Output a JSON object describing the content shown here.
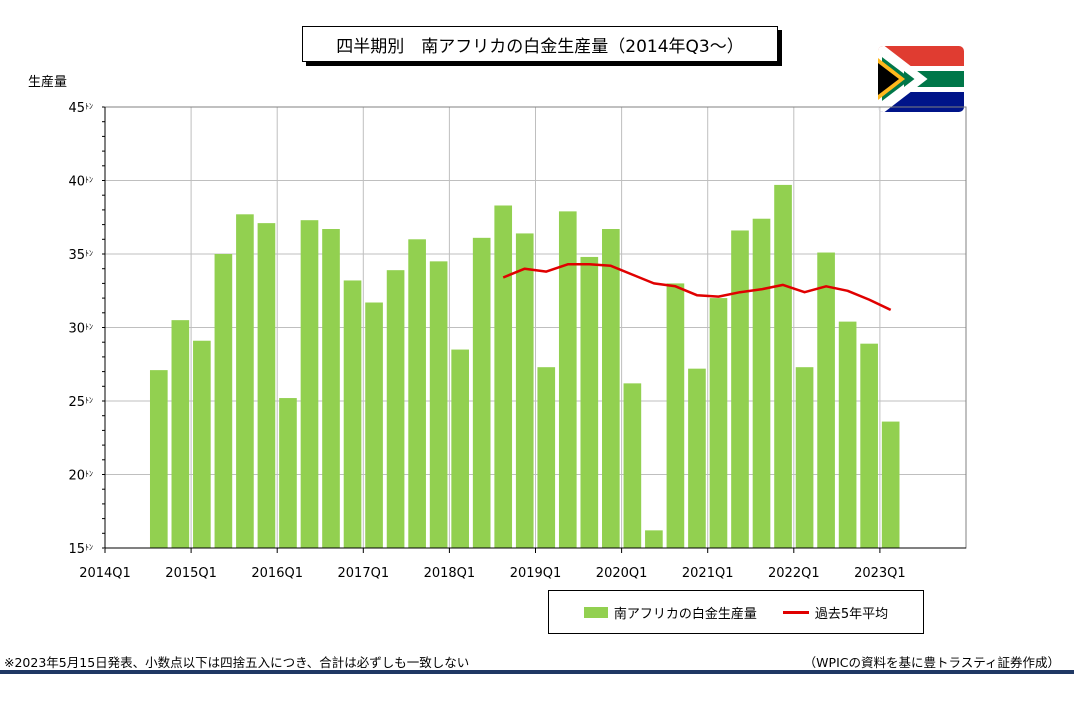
{
  "title": "四半期別　南アフリカの白金生産量（2014年Q3～）",
  "y_unit_label": "生産量",
  "legend": {
    "bar_label": "南アフリカの白金生産量",
    "line_label": "過去5年平均"
  },
  "footnote_left": "※2023年5月15日発表、小数点以下は四捨五入につき、合計は必ずしも一致しない",
  "footnote_right": "（WPICの資料を基に豊トラスティ証券作成）",
  "colors": {
    "bar": "#92d050",
    "line": "#e00000",
    "grid": "#bfbfbf",
    "rule": "#1f3864"
  },
  "chart_data": {
    "type": "bar",
    "ylim": [
      15,
      45
    ],
    "yticks": [
      15,
      20,
      25,
      30,
      35,
      40,
      45
    ],
    "ytick_suffix": "ﾄﾝ",
    "xtick_labels": [
      "2014Q1",
      "2015Q1",
      "2016Q1",
      "2017Q1",
      "2018Q1",
      "2019Q1",
      "2020Q1",
      "2021Q1",
      "2022Q1",
      "2023Q1"
    ],
    "categories": [
      "2014Q3",
      "2014Q4",
      "2015Q1",
      "2015Q2",
      "2015Q3",
      "2015Q4",
      "2016Q1",
      "2016Q2",
      "2016Q3",
      "2016Q4",
      "2017Q1",
      "2017Q2",
      "2017Q3",
      "2017Q4",
      "2018Q1",
      "2018Q2",
      "2018Q3",
      "2018Q4",
      "2019Q1",
      "2019Q2",
      "2019Q3",
      "2019Q4",
      "2020Q1",
      "2020Q2",
      "2020Q3",
      "2020Q4",
      "2021Q1",
      "2021Q2",
      "2021Q3",
      "2021Q4",
      "2022Q1",
      "2022Q2",
      "2022Q3",
      "2022Q4",
      "2023Q1"
    ],
    "series": [
      {
        "name": "南アフリカの白金生産量",
        "type": "bar",
        "values": [
          27.1,
          30.5,
          29.1,
          35.0,
          37.7,
          37.1,
          25.2,
          37.3,
          36.7,
          33.2,
          31.7,
          33.9,
          36.0,
          34.5,
          28.5,
          36.1,
          38.3,
          36.4,
          27.3,
          37.9,
          34.8,
          36.7,
          26.2,
          16.2,
          33.0,
          27.2,
          32.0,
          36.6,
          37.4,
          39.7,
          27.3,
          35.1,
          30.4,
          28.9,
          23.6
        ]
      },
      {
        "name": "過去5年平均",
        "type": "line",
        "values": [
          null,
          null,
          null,
          null,
          null,
          null,
          null,
          null,
          null,
          null,
          null,
          null,
          null,
          null,
          null,
          null,
          33.4,
          34.0,
          33.8,
          34.3,
          34.3,
          34.2,
          33.6,
          33.0,
          32.8,
          32.2,
          32.1,
          32.4,
          32.6,
          32.9,
          32.4,
          32.8,
          32.5,
          31.9,
          31.2
        ]
      }
    ],
    "grid": true,
    "legend_position": "bottom-right"
  }
}
